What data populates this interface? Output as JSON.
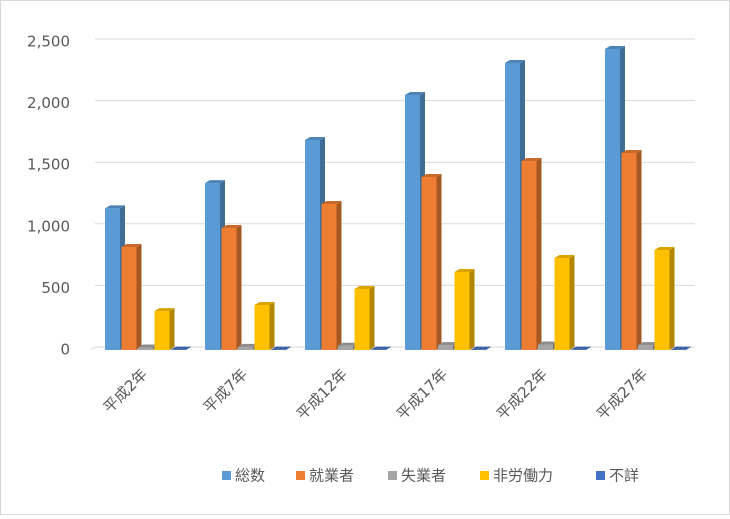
{
  "chart_data": {
    "type": "bar3d",
    "categories": [
      "平成2年",
      "平成7年",
      "平成12年",
      "平成17年",
      "平成22年",
      "平成27年"
    ],
    "series": [
      {
        "name": "総数",
        "color": "#5b9bd5",
        "values": [
          1150,
          1355,
          1705,
          2070,
          2330,
          2443
        ]
      },
      {
        "name": "就業者",
        "color": "#ed7d31",
        "values": [
          836,
          990,
          1185,
          1404,
          1534,
          1599
        ]
      },
      {
        "name": "失業者",
        "color": "#a5a5a5",
        "values": [
          20,
          25,
          35,
          40,
          45,
          40
        ]
      },
      {
        "name": "非労働力",
        "color": "#ffc000",
        "values": [
          316,
          365,
          495,
          633,
          747,
          812
        ]
      },
      {
        "name": "不詳",
        "color": "#4472c4",
        "values": [
          3,
          3,
          3,
          3,
          3,
          3
        ]
      }
    ],
    "ylim": [
      0,
      2500
    ],
    "yticks": [
      0,
      500,
      {
        "value": 1000,
        "label": "1,000"
      },
      {
        "value": 1500,
        "label": "1,500"
      },
      {
        "value": 2000,
        "label": "2,000"
      },
      {
        "value": 2500,
        "label": "2,500"
      }
    ],
    "grid": true,
    "legend": "bottom"
  }
}
